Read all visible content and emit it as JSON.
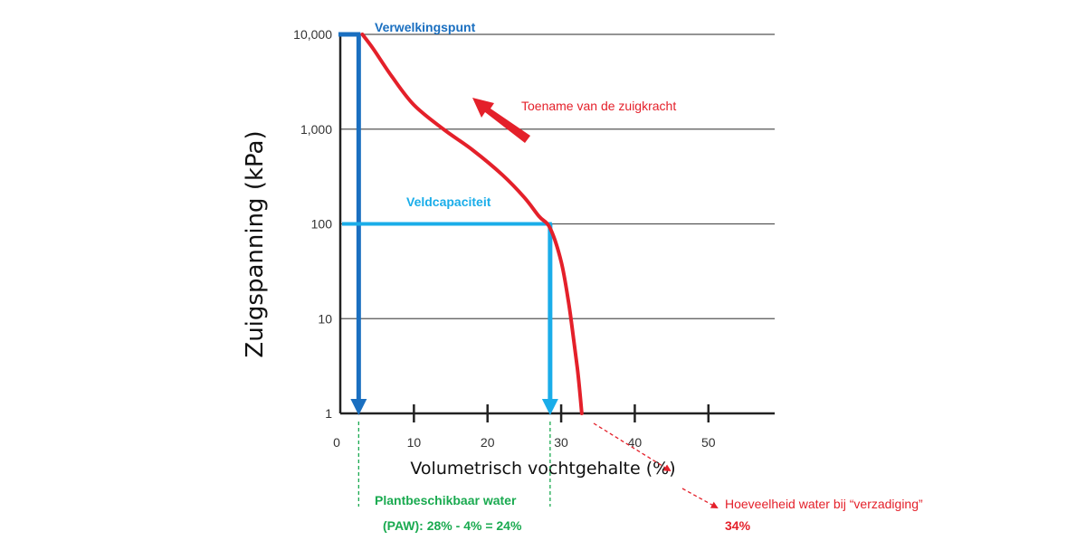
{
  "chart_data": {
    "type": "line",
    "title": "",
    "xlabel": "Volumetrisch vochtgehalte (%)",
    "ylabel": "Zuigspanning (kPa)",
    "xlim": [
      0,
      59
    ],
    "ylim": [
      1,
      10000
    ],
    "y_scale": "log",
    "grid": "horizontal",
    "x_ticks": [
      "0",
      "10",
      "20",
      "30",
      "40",
      "50"
    ],
    "y_ticks": [
      "1",
      "10",
      "100",
      "1,000",
      "10,000"
    ],
    "series": [
      {
        "color": "#e4202a",
        "x": [
          3,
          4.5,
          7,
          10,
          14,
          18,
          22,
          25,
          27,
          28.5,
          30,
          31,
          31.7,
          32.2,
          32.5,
          32.8
        ],
        "y": [
          10000,
          7000,
          3600,
          1800,
          1000,
          600,
          330,
          190,
          120,
          90,
          40,
          15,
          6,
          3,
          1.8,
          1
        ]
      }
    ],
    "annotations": {
      "wilting_point": {
        "label": "Verwelkingspunt",
        "x": 2.5,
        "y": 10000,
        "color": "#1a6fc0"
      },
      "field_capacity": {
        "label": "Veldcapaciteit",
        "x": 28.5,
        "y": 100,
        "color": "#1aade9"
      },
      "suction_increase": {
        "label": "Toename van de zuigkracht",
        "color": "#e4202a"
      },
      "saturation": {
        "label": "Hoeveelheid water bij “verzadiging”",
        "value": "34%",
        "color": "#e4202a"
      },
      "paw": {
        "label": "Plantbeschikbaar water",
        "formula": "(PAW): 28% - 4% = 24%",
        "color": "#1aaa50"
      }
    }
  }
}
